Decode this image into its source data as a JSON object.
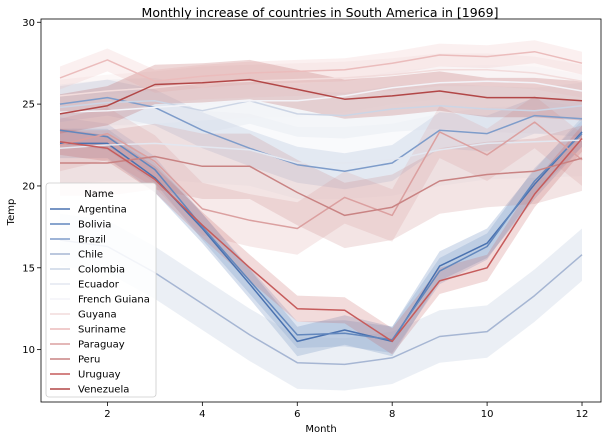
{
  "chart_data": {
    "type": "line",
    "title": "Monthly increase of countries in South America in [1969]",
    "xlabel": "Month",
    "ylabel": "Temp",
    "xlim": [
      0.6,
      12.4
    ],
    "ylim": [
      6.8,
      30.2
    ],
    "xticks": [
      2,
      4,
      6,
      8,
      10,
      12
    ],
    "yticks": [
      10,
      15,
      20,
      25,
      30
    ],
    "legend": {
      "title": "Name",
      "placement": "lower-left"
    },
    "x": [
      1,
      2,
      3,
      4,
      5,
      6,
      7,
      8,
      9,
      10,
      11,
      12
    ],
    "series": [
      {
        "name": "Argentina",
        "color": "#4a72b0",
        "values": [
          22.6,
          22.6,
          20.5,
          17.4,
          14.0,
          10.5,
          11.2,
          10.5,
          15.1,
          16.5,
          20.1,
          23.3
        ],
        "band": 0.9
      },
      {
        "name": "Bolivia",
        "color": "#6287bd",
        "values": [
          23.4,
          23.0,
          21.0,
          17.5,
          14.2,
          10.9,
          11.0,
          10.6,
          14.8,
          16.3,
          20.3,
          23.2
        ],
        "band": 0.8
      },
      {
        "name": "Brazil",
        "color": "#7e9cca",
        "values": [
          25.0,
          25.4,
          24.8,
          23.4,
          22.3,
          21.3,
          20.9,
          21.4,
          23.4,
          23.2,
          24.3,
          24.1
        ],
        "band": 1.1
      },
      {
        "name": "Chile",
        "color": "#a6b6d3",
        "values": [
          16.7,
          16.3,
          14.7,
          12.8,
          10.9,
          9.2,
          9.1,
          9.5,
          10.8,
          11.1,
          13.3,
          15.8
        ],
        "band": 1.6
      },
      {
        "name": "Colombia",
        "color": "#ccd5e5",
        "values": [
          24.8,
          25.1,
          25.2,
          24.6,
          25.2,
          24.4,
          24.3,
          24.7,
          24.9,
          24.7,
          24.6,
          24.9
        ],
        "band": 1.4
      },
      {
        "name": "Ecuador",
        "color": "#e3e7f0",
        "values": [
          22.3,
          22.5,
          22.6,
          22.4,
          22.2,
          21.4,
          21.4,
          21.6,
          22.2,
          22.6,
          22.7,
          22.8
        ],
        "band": 2.2
      },
      {
        "name": "French Guiana",
        "color": "#f3f3f8",
        "values": [
          24.5,
          24.6,
          24.8,
          25.0,
          25.2,
          25.2,
          25.5,
          26.0,
          26.3,
          26.4,
          26.3,
          25.8
        ],
        "band": 1.0
      },
      {
        "name": "Guyana",
        "color": "#f2dcdc",
        "values": [
          25.5,
          25.8,
          26.0,
          26.3,
          26.4,
          26.5,
          26.6,
          26.8,
          27.1,
          27.1,
          26.9,
          26.4
        ],
        "band": 1.0
      },
      {
        "name": "Suriname",
        "color": "#ebbcbc",
        "values": [
          26.6,
          27.7,
          26.4,
          26.7,
          26.9,
          27.0,
          27.1,
          27.5,
          28.0,
          27.9,
          28.2,
          27.5
        ],
        "band": 0.7
      },
      {
        "name": "Paraguay",
        "color": "#dba0a0",
        "values": [
          22.5,
          23.2,
          21.5,
          18.6,
          17.9,
          17.4,
          19.3,
          18.2,
          23.3,
          21.9,
          23.9,
          21.6
        ],
        "band": 1.6
      },
      {
        "name": "Peru",
        "color": "#c98383",
        "values": [
          21.4,
          21.4,
          21.8,
          21.2,
          21.2,
          19.6,
          18.2,
          18.7,
          20.3,
          20.7,
          20.9,
          21.7
        ],
        "band": 2.0
      },
      {
        "name": "Uruguay",
        "color": "#c65c5c",
        "values": [
          22.7,
          22.3,
          20.4,
          17.6,
          15.0,
          12.5,
          12.4,
          10.5,
          14.2,
          15.0,
          19.5,
          22.9
        ],
        "band": 0.8
      },
      {
        "name": "Venezuela",
        "color": "#b24747",
        "values": [
          24.4,
          24.9,
          26.2,
          26.3,
          26.5,
          25.9,
          25.3,
          25.5,
          25.8,
          25.4,
          25.4,
          25.2
        ],
        "band": 1.2
      }
    ]
  }
}
